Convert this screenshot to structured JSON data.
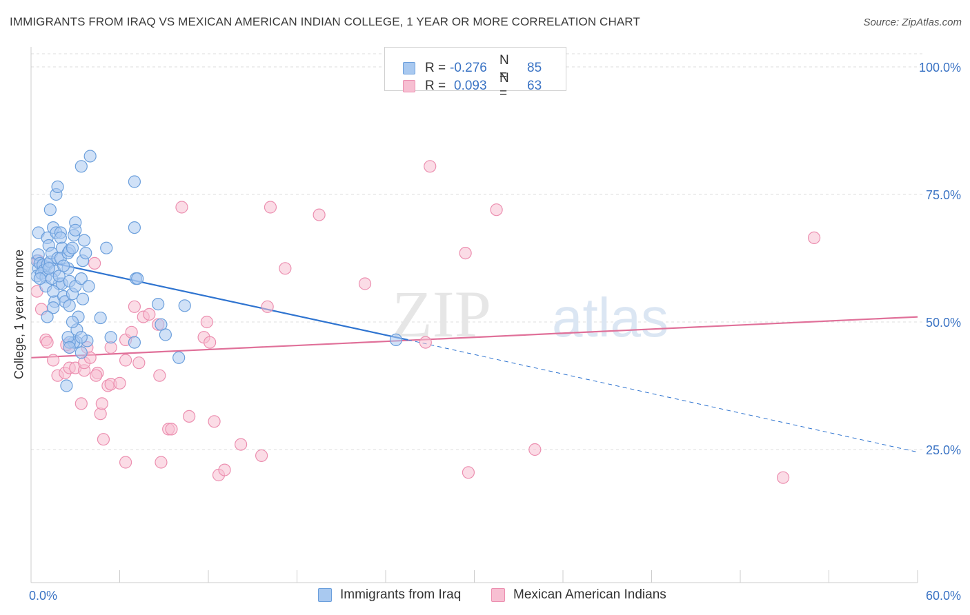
{
  "header": {
    "title": "IMMIGRANTS FROM IRAQ VS MEXICAN AMERICAN INDIAN COLLEGE, 1 YEAR OR MORE CORRELATION CHART",
    "source": "Source: ZipAtlas.com"
  },
  "legend": {
    "rows": [
      {
        "r_label": "R =",
        "r_value": "-0.276",
        "n_label": "N =",
        "n_value": "85"
      },
      {
        "r_label": "R =",
        "r_value": "0.093",
        "n_label": "N =",
        "n_value": "63"
      }
    ]
  },
  "watermark": {
    "zip": "ZIP",
    "atlas": "atlas"
  },
  "colors": {
    "blue_fill": "#a9c9f0",
    "blue_stroke": "#6b9fdc",
    "blue_line": "#2f74d0",
    "pink_fill": "#f7bfd2",
    "pink_stroke": "#ec8fb0",
    "pink_line": "#e07099",
    "tick_label": "#3a73c4",
    "grid": "#dddddd"
  },
  "chart_data": {
    "type": "scatter",
    "title": "IMMIGRANTS FROM IRAQ VS MEXICAN AMERICAN INDIAN COLLEGE, 1 YEAR OR MORE CORRELATION CHART",
    "xlabel": "",
    "ylabel": "College, 1 year or more",
    "xlim": [
      0,
      60
    ],
    "ylim": [
      0,
      105
    ],
    "x_tick_labels": [
      "0.0%",
      "60.0%"
    ],
    "y_tick_labels": [
      "100.0%",
      "75.0%",
      "50.0%",
      "25.0%"
    ],
    "y_ticks": [
      100,
      75,
      50,
      25
    ],
    "legend_position": "top-center",
    "series": [
      {
        "name": "Immigrants from Iraq",
        "r": -0.276,
        "n": 85,
        "color": "blue",
        "trend": {
          "x0": 0,
          "y0": 62.5,
          "x1": 25.5,
          "y1": 46.5,
          "dash_x1": 60,
          "dash_y1": 24.5
        },
        "points": [
          [
            0.4,
            62
          ],
          [
            0.5,
            63.2
          ],
          [
            0.5,
            60.5
          ],
          [
            0.6,
            61.5
          ],
          [
            0.4,
            59
          ],
          [
            0.8,
            61.2
          ],
          [
            0.9,
            60.2
          ],
          [
            0.7,
            59.5
          ],
          [
            1.0,
            58.8
          ],
          [
            0.5,
            67.5
          ],
          [
            1.1,
            66.5
          ],
          [
            1.2,
            65
          ],
          [
            1.1,
            61.3
          ],
          [
            1.3,
            61.8
          ],
          [
            1.4,
            63.5
          ],
          [
            1.3,
            72
          ],
          [
            1.5,
            68.5
          ],
          [
            1.6,
            60
          ],
          [
            1.8,
            62.5
          ],
          [
            1.9,
            57.5
          ],
          [
            1.0,
            57
          ],
          [
            1.4,
            58.5
          ],
          [
            1.7,
            67.5
          ],
          [
            1.7,
            75
          ],
          [
            1.8,
            76.5
          ],
          [
            1.6,
            54
          ],
          [
            1.5,
            52.8
          ],
          [
            2.0,
            67.5
          ],
          [
            2.0,
            66.5
          ],
          [
            2.1,
            64.5
          ],
          [
            2.0,
            62.5
          ],
          [
            2.1,
            57.5
          ],
          [
            2.2,
            55
          ],
          [
            2.3,
            54
          ],
          [
            2.5,
            63.5
          ],
          [
            2.6,
            64
          ],
          [
            2.5,
            60.5
          ],
          [
            2.6,
            53.2
          ],
          [
            2.6,
            58
          ],
          [
            2.9,
            67
          ],
          [
            2.8,
            64.5
          ],
          [
            3.0,
            69.5
          ],
          [
            3.0,
            68
          ],
          [
            2.8,
            55.5
          ],
          [
            3.0,
            57
          ],
          [
            3.1,
            48.5
          ],
          [
            3.2,
            51
          ],
          [
            3.4,
            58.5
          ],
          [
            3.5,
            62
          ],
          [
            3.5,
            54.5
          ],
          [
            3.6,
            66
          ],
          [
            3.7,
            63.5
          ],
          [
            3.9,
            57
          ],
          [
            3.1,
            46
          ],
          [
            3.4,
            44
          ],
          [
            2.9,
            46
          ],
          [
            2.6,
            46
          ],
          [
            2.5,
            47
          ],
          [
            2.4,
            37.5
          ],
          [
            3.8,
            46.3
          ],
          [
            4.0,
            82.5
          ],
          [
            3.4,
            80.5
          ],
          [
            5.1,
            64.5
          ],
          [
            4.7,
            50.8
          ],
          [
            5.4,
            47
          ],
          [
            7.1,
            58.5
          ],
          [
            7.0,
            68.5
          ],
          [
            7.0,
            77.5
          ],
          [
            7.2,
            58.5
          ],
          [
            7.0,
            46
          ],
          [
            8.6,
            53.5
          ],
          [
            8.8,
            49.5
          ],
          [
            9.1,
            47.5
          ],
          [
            10.0,
            43
          ],
          [
            10.4,
            53.2
          ],
          [
            24.7,
            46.5
          ],
          [
            1.1,
            51
          ],
          [
            1.5,
            56
          ],
          [
            1.9,
            59
          ],
          [
            0.6,
            58.5
          ],
          [
            3.4,
            47
          ],
          [
            2.2,
            61
          ],
          [
            1.2,
            60.5
          ],
          [
            2.8,
            50
          ],
          [
            2.6,
            45
          ]
        ]
      },
      {
        "name": "Mexican American Indians",
        "r": 0.093,
        "n": 63,
        "color": "pink",
        "trend": {
          "x0": 0,
          "y0": 43,
          "x1": 60,
          "y1": 51
        },
        "points": [
          [
            0.4,
            56
          ],
          [
            0.5,
            62
          ],
          [
            0.7,
            52.5
          ],
          [
            1.0,
            46.5
          ],
          [
            1.1,
            46
          ],
          [
            1.5,
            42.5
          ],
          [
            1.8,
            39.5
          ],
          [
            2.3,
            40
          ],
          [
            2.6,
            41
          ],
          [
            2.6,
            45
          ],
          [
            2.4,
            45.5
          ],
          [
            3.0,
            41
          ],
          [
            3.4,
            34
          ],
          [
            3.6,
            40.5
          ],
          [
            3.6,
            42
          ],
          [
            3.8,
            45
          ],
          [
            4.0,
            43
          ],
          [
            4.5,
            40
          ],
          [
            4.4,
            39.5
          ],
          [
            4.7,
            32
          ],
          [
            4.8,
            34
          ],
          [
            4.9,
            27
          ],
          [
            5.2,
            37.5
          ],
          [
            5.4,
            37.8
          ],
          [
            5.4,
            45
          ],
          [
            6.0,
            38
          ],
          [
            6.4,
            22.5
          ],
          [
            6.4,
            42.5
          ],
          [
            6.4,
            46.5
          ],
          [
            6.8,
            48
          ],
          [
            7.0,
            53
          ],
          [
            7.3,
            42
          ],
          [
            7.6,
            51
          ],
          [
            8.0,
            51.5
          ],
          [
            8.6,
            49.5
          ],
          [
            8.7,
            39.5
          ],
          [
            8.8,
            22.5
          ],
          [
            9.3,
            29
          ],
          [
            9.5,
            29
          ],
          [
            10.2,
            72.5
          ],
          [
            10.7,
            31.5
          ],
          [
            11.7,
            47
          ],
          [
            11.9,
            50
          ],
          [
            12.1,
            46
          ],
          [
            12.4,
            30.5
          ],
          [
            12.7,
            20
          ],
          [
            13.1,
            21
          ],
          [
            14.2,
            26
          ],
          [
            15.6,
            23.8
          ],
          [
            16.0,
            53
          ],
          [
            16.2,
            72.5
          ],
          [
            17.2,
            60.5
          ],
          [
            19.5,
            71
          ],
          [
            22.6,
            57.5
          ],
          [
            26.7,
            46
          ],
          [
            27.0,
            80.5
          ],
          [
            29.4,
            63.5
          ],
          [
            29.6,
            20.5
          ],
          [
            31.5,
            72
          ],
          [
            34.1,
            25
          ],
          [
            50.9,
            19.5
          ],
          [
            53.0,
            66.5
          ],
          [
            4.3,
            61.5
          ]
        ]
      }
    ]
  },
  "bottom_legend": [
    {
      "label": "Immigrants from Iraq"
    },
    {
      "label": "Mexican American Indians"
    }
  ]
}
